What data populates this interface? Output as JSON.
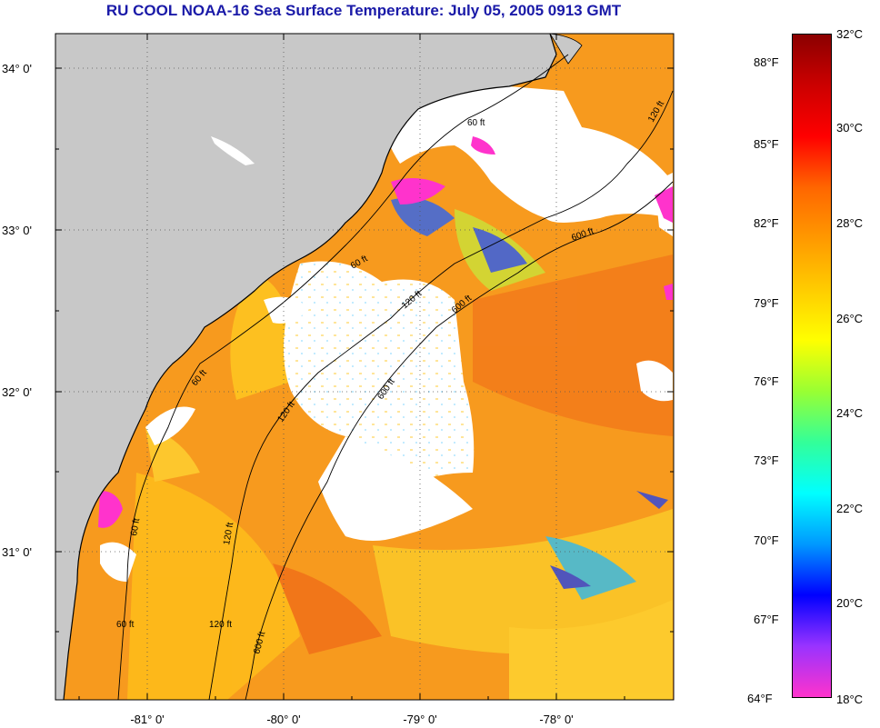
{
  "title": "RU COOL  NOAA-16  Sea Surface Temperature:  July 05, 2005 0913 GMT",
  "map": {
    "lat_labels": [
      "34° 0'",
      "33° 0'",
      "32° 0'",
      "31° 0'"
    ],
    "lat_values": [
      34,
      33,
      32,
      31
    ],
    "lon_labels": [
      "-81° 0'",
      "-80° 0'",
      "-79° 0'",
      "-78° 0'"
    ],
    "lon_values": [
      -81,
      -80,
      -79,
      -78
    ],
    "lat_range": [
      30.1,
      34.2
    ],
    "lon_range": [
      -81.6,
      -77.3
    ],
    "land_color": "#c8c8c8",
    "cloud_color": "#ffffff",
    "contour_labels": [
      "60 ft",
      "60 ft",
      "60 ft",
      "60 ft",
      "120 ft",
      "120 ft",
      "120 ft",
      "120 ft",
      "600 ft",
      "600 ft",
      "600 ft",
      "600 ft",
      "60 ft",
      "120 ft"
    ]
  },
  "colorbar": {
    "fahrenheit_labels": [
      "88°F",
      "85°F",
      "82°F",
      "79°F",
      "76°F",
      "73°F",
      "70°F",
      "67°F",
      "64°F"
    ],
    "celsius_labels": [
      "32°C",
      "30°C",
      "28°C",
      "26°C",
      "24°C",
      "22°C",
      "20°C",
      "18°C"
    ],
    "celsius_range": [
      18,
      32
    ],
    "colors": [
      "#ff33cc",
      "#9933ff",
      "#0000ff",
      "#0099ff",
      "#00ffff",
      "#33ff99",
      "#99ff33",
      "#ffff00",
      "#ffcc00",
      "#ff9900",
      "#ff6600",
      "#ff0000",
      "#cc0000",
      "#8b0000"
    ]
  }
}
